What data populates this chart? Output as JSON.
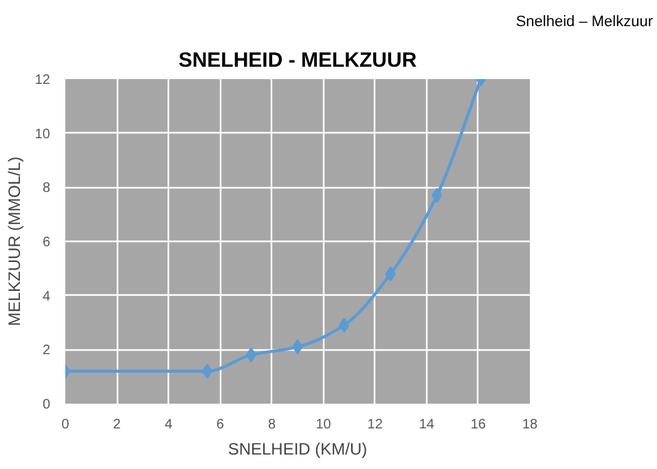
{
  "chart_data": {
    "type": "line",
    "title": "SNELHEID - MELKZUUR",
    "annotations": [
      "Snelheid – Melkzuur"
    ],
    "xlabel": "SNELHEID (KM/U)",
    "ylabel": "MELKZUUR (MMOL/L)",
    "x": [
      0,
      5.5,
      7.2,
      9,
      10.8,
      12.6,
      14.4,
      16.1
    ],
    "series": [
      {
        "color": "#5b9bd5",
        "values": [
          1.2,
          1.2,
          1.8,
          2.1,
          2.9,
          4.8,
          7.7,
          12
        ]
      }
    ],
    "xlim": [
      0,
      18
    ],
    "xticks": [
      0,
      2,
      4,
      6,
      8,
      10,
      12,
      14,
      16,
      18
    ],
    "ylim": [
      0,
      12
    ],
    "yticks": [
      0,
      2,
      4,
      6,
      8,
      10,
      12
    ],
    "grid": true,
    "marker": "diamond",
    "line_style": "solid"
  }
}
